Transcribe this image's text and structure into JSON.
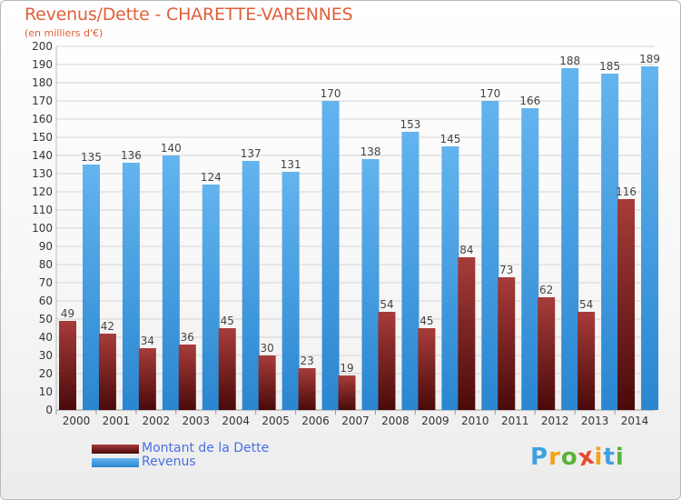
{
  "title": "Revenus/Dette - CHARETTE-VARENNES",
  "subtitle": "(en milliers d'€)",
  "logo": {
    "letters": [
      "P",
      "r",
      "o",
      "x",
      "i",
      "t",
      "i"
    ],
    "colors": [
      "#3fa0e0",
      "#f3a21c",
      "#5bb33b",
      "#e84a2e",
      "#f3a21c",
      "#3fa0e0",
      "#5bb33b"
    ]
  },
  "legend": [
    {
      "label": "Montant de la Dette",
      "series": "debt"
    },
    {
      "label": "Revenus",
      "series": "revenue"
    }
  ],
  "colors": {
    "debt_top": "#a73c3a",
    "debt_bottom": "#4a0a0a",
    "revenue_top": "#63b4ef",
    "revenue_bottom": "#2a86d0",
    "grid": "#d4d4d4",
    "axis_text": "#333333",
    "value_text": "#444444"
  },
  "chart_data": {
    "type": "bar",
    "title": "Revenus/Dette - CHARETTE-VARENNES",
    "subtitle": "(en milliers d'€)",
    "xlabel": "",
    "ylabel": "",
    "ylim": [
      0,
      200
    ],
    "yticks": [
      0,
      10,
      20,
      30,
      40,
      50,
      60,
      70,
      80,
      90,
      100,
      110,
      120,
      130,
      140,
      150,
      160,
      170,
      180,
      190,
      200
    ],
    "grid": true,
    "legend_position": "bottom-left",
    "categories": [
      "2000",
      "2001",
      "2002",
      "2003",
      "2004",
      "2005",
      "2006",
      "2007",
      "2008",
      "2009",
      "2010",
      "2011",
      "2012",
      "2013",
      "2014"
    ],
    "series": [
      {
        "name": "Montant de la Dette",
        "key": "debt",
        "values": [
          49,
          42,
          34,
          36,
          45,
          30,
          23,
          19,
          54,
          45,
          84,
          73,
          62,
          54,
          116
        ]
      },
      {
        "name": "Revenus",
        "key": "revenue",
        "values": [
          135,
          136,
          140,
          124,
          137,
          131,
          170,
          138,
          153,
          145,
          170,
          166,
          188,
          185,
          189
        ]
      }
    ]
  }
}
